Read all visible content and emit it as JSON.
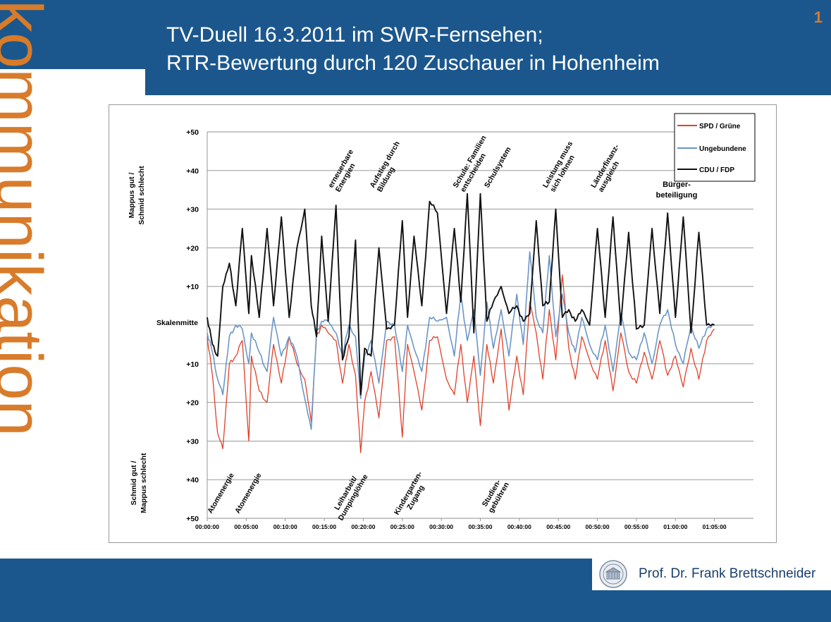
{
  "slide": {
    "title_line1": "TV-Duell 16.3.2011 im SWR-Fernsehen;",
    "title_line2": "RTR-Bewertung durch 120 Zuschauer in Hohenheim",
    "page_number": "1",
    "brand": "kommunikation",
    "author": "Prof. Dr. Frank Brettschneider",
    "colors": {
      "band": "#1b578d",
      "accent": "#d87b2a"
    }
  },
  "chart_data": {
    "type": "line",
    "ylabel_top_line1": "Mappus gut /",
    "ylabel_top_line2": "Schmid schlecht",
    "ylabel_bottom_line1": "Schmid gut /",
    "ylabel_bottom_line2": "Mappus schlecht",
    "midline_label": "Skalenmitte",
    "ylim": [
      -50,
      50
    ],
    "yticks": [
      {
        "label": "+50",
        "value": 50
      },
      {
        "label": "+40",
        "value": 40
      },
      {
        "label": "+30",
        "value": 30
      },
      {
        "label": "+20",
        "value": 20
      },
      {
        "label": "+10",
        "value": 10
      },
      {
        "label": "",
        "value": 0
      },
      {
        "label": "+10",
        "value": -10
      },
      {
        "label": "+20",
        "value": -20
      },
      {
        "label": "+30",
        "value": -30
      },
      {
        "label": "+40",
        "value": -40
      },
      {
        "label": "+50",
        "value": -50
      }
    ],
    "xlim": [
      "00:00:00",
      "01:10:00"
    ],
    "xticks": [
      "00:00:00",
      "00:05:00",
      "00:10:00",
      "00:15:00",
      "00:20:00",
      "00:25:00",
      "00:30:00",
      "00:35:00",
      "00:40:00",
      "00:45:00",
      "00:50:00",
      "00:55:00",
      "01:00:00",
      "01:05:00"
    ],
    "grid": true,
    "legend_position": "top-right",
    "series": [
      {
        "name": "SPD / Grüne",
        "color": "#e0402a",
        "x": [
          "00:00:00",
          "00:00:40",
          "00:01:20",
          "00:02:00",
          "00:02:50",
          "00:03:40",
          "00:04:30",
          "00:05:20",
          "00:05:40",
          "00:06:40",
          "00:07:40",
          "00:08:30",
          "00:09:30",
          "00:10:30",
          "00:11:30",
          "00:12:30",
          "00:13:20",
          "00:14:00",
          "00:14:40",
          "00:15:30",
          "00:16:30",
          "00:17:20",
          "00:18:10",
          "00:19:00",
          "00:19:40",
          "00:20:10",
          "00:21:00",
          "00:22:00",
          "00:23:00",
          "00:24:00",
          "00:25:00",
          "00:25:40",
          "00:26:30",
          "00:27:30",
          "00:28:30",
          "00:29:30",
          "00:30:40",
          "00:31:40",
          "00:32:30",
          "00:33:20",
          "00:34:10",
          "00:35:00",
          "00:35:50",
          "00:36:40",
          "00:37:40",
          "00:38:40",
          "00:39:40",
          "00:40:30",
          "00:41:20",
          "00:42:10",
          "00:43:00",
          "00:43:50",
          "00:44:40",
          "00:45:30",
          "00:46:20",
          "00:47:10",
          "00:48:00",
          "00:49:00",
          "00:50:00",
          "00:51:00",
          "00:52:00",
          "00:53:00",
          "00:54:00",
          "00:55:00",
          "00:56:00",
          "00:57:00",
          "00:58:00",
          "00:59:00",
          "01:00:00",
          "01:01:00",
          "01:02:00",
          "01:03:00",
          "01:04:00",
          "01:05:00"
        ],
        "y": [
          -3,
          -13,
          -28,
          -32,
          -10,
          -8,
          -4,
          -30,
          -8,
          -17,
          -20,
          -5,
          -15,
          -3,
          -10,
          -14,
          -25,
          -3,
          0,
          -2,
          -4,
          -15,
          -5,
          -13,
          -33,
          -20,
          -12,
          -24,
          -4,
          -3,
          -29,
          -5,
          -12,
          -22,
          -4,
          -3,
          -14,
          -18,
          -5,
          -20,
          -8,
          -26,
          -5,
          -15,
          -1,
          -22,
          -8,
          -18,
          6,
          -2,
          -14,
          4,
          -9,
          13,
          -6,
          -14,
          -3,
          -9,
          -14,
          -4,
          -17,
          -2,
          -12,
          -15,
          -7,
          -14,
          -4,
          -13,
          -8,
          -16,
          -6,
          -14,
          -4,
          -1
        ]
      },
      {
        "name": "Ungebundene",
        "color": "#6b96c8",
        "x": [
          "00:00:00",
          "00:00:40",
          "00:01:20",
          "00:02:00",
          "00:02:50",
          "00:03:40",
          "00:04:30",
          "00:05:20",
          "00:05:40",
          "00:06:40",
          "00:07:40",
          "00:08:30",
          "00:09:30",
          "00:10:30",
          "00:11:30",
          "00:12:30",
          "00:13:20",
          "00:14:00",
          "00:14:40",
          "00:15:30",
          "00:16:30",
          "00:17:20",
          "00:18:10",
          "00:19:00",
          "00:19:40",
          "00:20:10",
          "00:21:00",
          "00:22:00",
          "00:23:00",
          "00:24:00",
          "00:25:00",
          "00:25:40",
          "00:26:30",
          "00:27:30",
          "00:28:30",
          "00:29:30",
          "00:30:40",
          "00:31:40",
          "00:32:30",
          "00:33:20",
          "00:34:10",
          "00:35:00",
          "00:35:50",
          "00:36:40",
          "00:37:40",
          "00:38:40",
          "00:39:40",
          "00:40:30",
          "00:41:20",
          "00:42:10",
          "00:43:00",
          "00:43:50",
          "00:44:40",
          "00:45:30",
          "00:46:20",
          "00:47:10",
          "00:48:00",
          "00:49:00",
          "00:50:00",
          "00:51:00",
          "00:52:00",
          "00:53:00",
          "00:54:00",
          "00:55:00",
          "00:56:00",
          "00:57:00",
          "00:58:00",
          "00:59:00",
          "01:00:00",
          "01:01:00",
          "01:02:00",
          "01:03:00",
          "01:04:00",
          "01:05:00"
        ],
        "y": [
          -2,
          -7,
          -14,
          -18,
          -3,
          0,
          -1,
          -10,
          -2,
          -7,
          -12,
          2,
          -8,
          -3,
          -8,
          -19,
          -27,
          -2,
          1,
          1,
          -2,
          -8,
          0,
          -3,
          -19,
          -8,
          -4,
          -15,
          1,
          0,
          -12,
          0,
          -6,
          -12,
          2,
          1,
          2,
          -8,
          8,
          -4,
          4,
          -13,
          6,
          -6,
          4,
          -8,
          8,
          -5,
          19,
          2,
          -2,
          18,
          -3,
          8,
          -2,
          -7,
          2,
          -5,
          -9,
          0,
          -12,
          3,
          -7,
          -9,
          -2,
          -10,
          0,
          4,
          -5,
          -10,
          0,
          -6,
          -1,
          0
        ]
      },
      {
        "name": "CDU / FDP",
        "color": "#111111",
        "x": [
          "00:00:00",
          "00:00:40",
          "00:01:20",
          "00:02:00",
          "00:02:50",
          "00:03:40",
          "00:04:30",
          "00:05:20",
          "00:05:40",
          "00:06:40",
          "00:07:40",
          "00:08:30",
          "00:09:30",
          "00:10:30",
          "00:11:30",
          "00:12:30",
          "00:13:20",
          "00:14:00",
          "00:14:40",
          "00:15:30",
          "00:16:30",
          "00:17:20",
          "00:18:10",
          "00:19:00",
          "00:19:40",
          "00:20:10",
          "00:21:00",
          "00:22:00",
          "00:23:00",
          "00:24:00",
          "00:25:00",
          "00:25:40",
          "00:26:30",
          "00:27:30",
          "00:28:30",
          "00:29:30",
          "00:30:40",
          "00:31:40",
          "00:32:30",
          "00:33:20",
          "00:34:10",
          "00:35:00",
          "00:35:50",
          "00:36:40",
          "00:37:40",
          "00:38:40",
          "00:39:40",
          "00:40:30",
          "00:41:20",
          "00:42:10",
          "00:43:00",
          "00:43:50",
          "00:44:40",
          "00:45:30",
          "00:46:20",
          "00:47:10",
          "00:48:00",
          "00:49:00",
          "00:50:00",
          "00:51:00",
          "00:52:00",
          "00:53:00",
          "00:54:00",
          "00:55:00",
          "00:56:00",
          "00:57:00",
          "00:58:00",
          "00:59:00",
          "01:00:00",
          "01:01:00",
          "01:02:00",
          "01:03:00",
          "01:04:00",
          "01:05:00"
        ],
        "y": [
          2,
          -5,
          -8,
          10,
          16,
          5,
          25,
          3,
          18,
          2,
          25,
          5,
          28,
          2,
          20,
          30,
          5,
          -3,
          23,
          1,
          31,
          -9,
          -3,
          22,
          -18,
          -6,
          -8,
          20,
          -1,
          0,
          27,
          2,
          23,
          5,
          32,
          29,
          3,
          25,
          6,
          34,
          -2,
          34,
          1,
          6,
          10,
          3,
          5,
          1,
          3,
          27,
          5,
          6,
          30,
          2,
          4,
          1,
          4,
          0,
          25,
          2,
          28,
          0,
          24,
          -1,
          0,
          25,
          3,
          29,
          2,
          28,
          -2,
          24,
          0,
          0
        ]
      }
    ],
    "annotations_top": [
      {
        "text_line1": "erneuerbare",
        "text_line2": "Energien",
        "x": "00:16:00"
      },
      {
        "text_line1": "Aufstieg durch",
        "text_line2": "Bildung",
        "x": "00:21:20"
      },
      {
        "text_line1": "Schule: Familien",
        "text_line2": "entscheiden",
        "x": "00:32:00"
      },
      {
        "text_line1": "Schulsystem",
        "text_line2": "",
        "x": "00:36:00"
      },
      {
        "text_line1": "Leistung muss",
        "text_line2": "sich lohnen",
        "x": "00:43:30"
      },
      {
        "text_line1": "Länderfinanz-",
        "text_line2": "ausgleich",
        "x": "00:49:40"
      },
      {
        "text_line1": "Bürger-",
        "text_line2": "beteiligung",
        "x": "01:00:20"
      }
    ],
    "annotations_bottom": [
      {
        "text": "Atomenergie",
        "x": "00:02:00"
      },
      {
        "text": "Atomenergie",
        "x": "00:05:30"
      },
      {
        "text_line1": "Leiharbeit/",
        "text_line2": "Dumpinglöhne",
        "x": "00:18:00"
      },
      {
        "text_line1": "Kindergarten-",
        "text_line2": "Zugang",
        "x": "00:26:00"
      },
      {
        "text_line1": "Studien-",
        "text_line2": "gebühren",
        "x": "00:36:40"
      }
    ]
  }
}
